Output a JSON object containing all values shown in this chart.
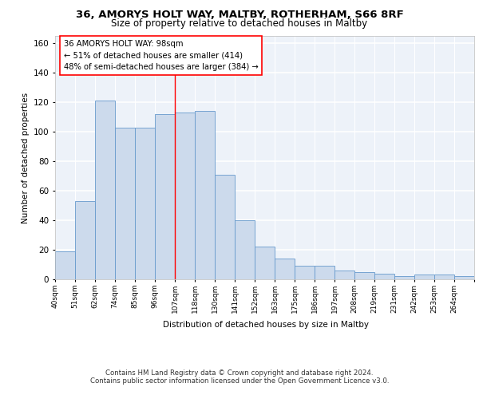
{
  "title1": "36, AMORYS HOLT WAY, MALTBY, ROTHERHAM, S66 8RF",
  "title2": "Size of property relative to detached houses in Maltby",
  "xlabel": "Distribution of detached houses by size in Maltby",
  "ylabel": "Number of detached properties",
  "categories": [
    "40sqm",
    "51sqm",
    "62sqm",
    "74sqm",
    "85sqm",
    "96sqm",
    "107sqm",
    "118sqm",
    "130sqm",
    "141sqm",
    "152sqm",
    "163sqm",
    "175sqm",
    "186sqm",
    "197sqm",
    "208sqm",
    "219sqm",
    "231sqm",
    "242sqm",
    "253sqm",
    "264sqm"
  ],
  "hist_values": [
    19,
    53,
    121,
    103,
    103,
    112,
    113,
    114,
    71,
    40,
    22,
    14,
    9,
    9,
    6,
    5,
    4,
    2,
    3,
    3,
    2
  ],
  "bar_color": "#ccdaec",
  "bar_edge_color": "#6699cc",
  "vline_color": "red",
  "annotation_text": "36 AMORYS HOLT WAY: 98sqm\n← 51% of detached houses are smaller (414)\n48% of semi-detached houses are larger (384) →",
  "annotation_box_color": "white",
  "annotation_box_edge": "red",
  "ylim": [
    0,
    165
  ],
  "yticks": [
    0,
    20,
    40,
    60,
    80,
    100,
    120,
    140,
    160
  ],
  "footer": "Contains HM Land Registry data © Crown copyright and database right 2024.\nContains public sector information licensed under the Open Government Licence v3.0.",
  "bg_color": "#edf2f9",
  "grid_color": "white"
}
